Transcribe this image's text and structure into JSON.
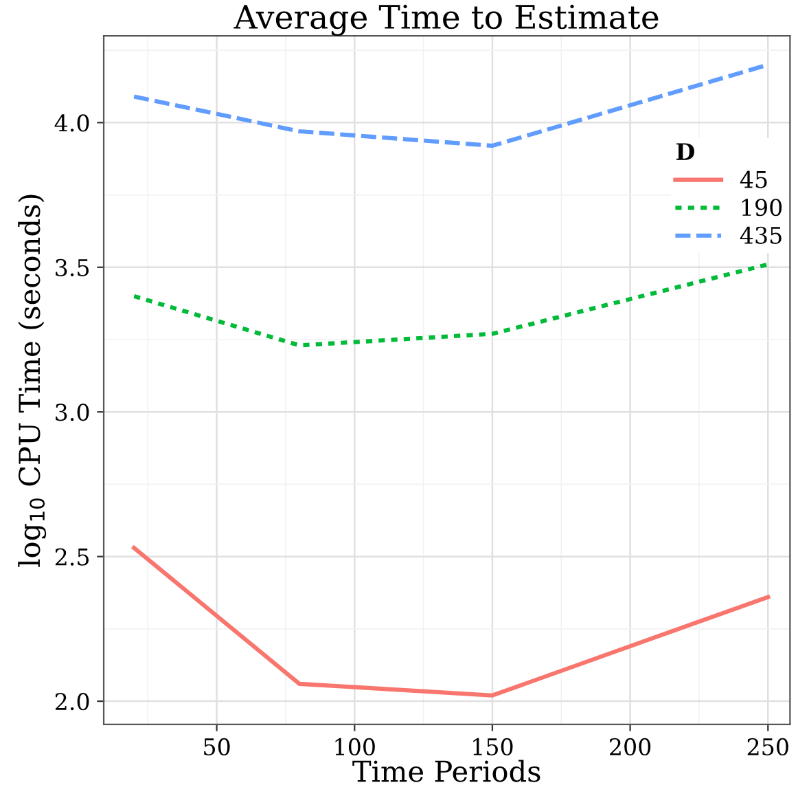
{
  "chart_data": {
    "type": "line",
    "title": "Average Time to Estimate",
    "xlabel": "Time Periods",
    "ylabel": "log$_{10}$ CPU Time (seconds)",
    "legend_title": "D",
    "x": [
      20,
      80,
      150,
      250
    ],
    "series": [
      {
        "name": "45",
        "color": "#f8766d",
        "line_style": "solid",
        "values": [
          2.53,
          2.06,
          2.02,
          2.36
        ]
      },
      {
        "name": "190",
        "color": "#00ba38",
        "line_style": "dotted",
        "values": [
          3.4,
          3.23,
          3.27,
          3.51
        ]
      },
      {
        "name": "435",
        "color": "#619cff",
        "line_style": "dashed",
        "values": [
          4.09,
          3.97,
          3.92,
          4.2
        ]
      }
    ],
    "xlim": [
      9,
      258
    ],
    "ylim": [
      1.92,
      4.3
    ],
    "xticks": [
      50,
      100,
      150,
      200,
      250
    ],
    "yticks": [
      {
        "value": 2.0,
        "label": "2.0"
      },
      {
        "value": 2.5,
        "label": "2.5"
      },
      {
        "value": 3.0,
        "label": "3.0"
      },
      {
        "value": 3.5,
        "label": "3.5"
      },
      {
        "value": 4.0,
        "label": "4.0"
      }
    ],
    "grid": true,
    "legend": "top right",
    "marker": "none"
  }
}
